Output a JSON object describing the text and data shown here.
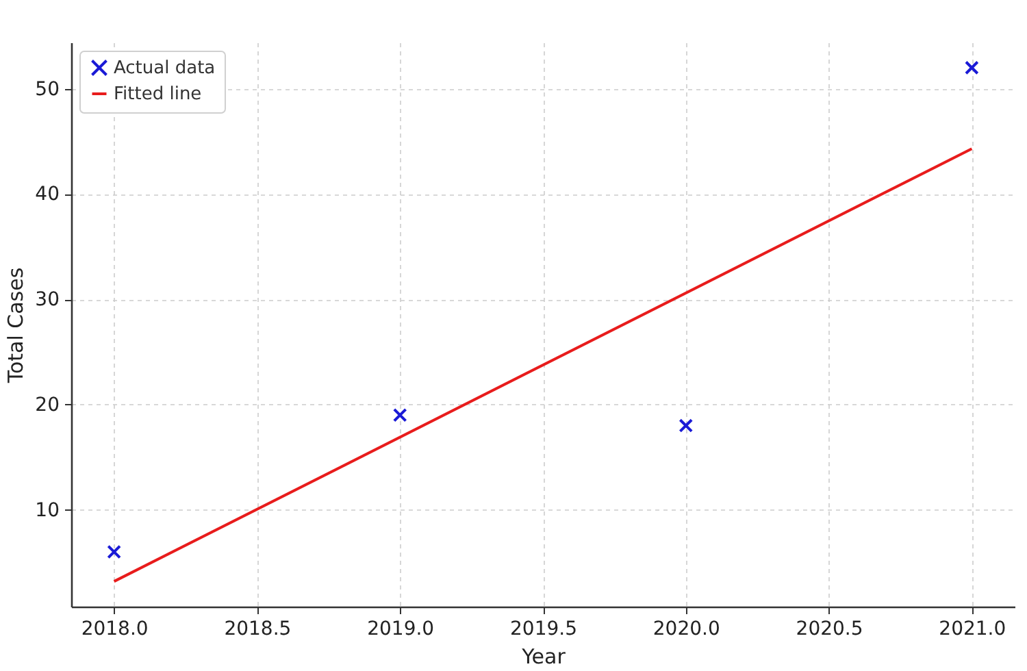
{
  "chart_data": {
    "type": "scatter",
    "xlabel": "Year",
    "ylabel": "Total Cases",
    "series": [
      {
        "name": "Actual data",
        "color": "#1a1ad6",
        "marker": "cross",
        "x": [
          2018,
          2019,
          2020,
          2021
        ],
        "values": [
          6,
          19,
          18,
          52
        ]
      },
      {
        "name": "Fitted line",
        "type": "line",
        "color": "#e81c1c",
        "line_style": "solid",
        "x": [
          2018,
          2021
        ],
        "values": [
          3.2,
          44.3
        ]
      }
    ],
    "xlim": [
      2017.85,
      2021.15
    ],
    "ylim": [
      0.8,
      54.4
    ],
    "xticks": [
      {
        "value": 2018,
        "label": "2018.0"
      },
      {
        "value": 2018.5,
        "label": "2018.5"
      },
      {
        "value": 2019,
        "label": "2019.0"
      },
      {
        "value": 2019.5,
        "label": "2019.5"
      },
      {
        "value": 2020,
        "label": "2020.0"
      },
      {
        "value": 2020.5,
        "label": "2020.5"
      },
      {
        "value": 2021,
        "label": "2021.0"
      }
    ],
    "yticks": [
      10,
      20,
      30,
      40,
      50
    ],
    "grid": true,
    "legend": "top left"
  }
}
